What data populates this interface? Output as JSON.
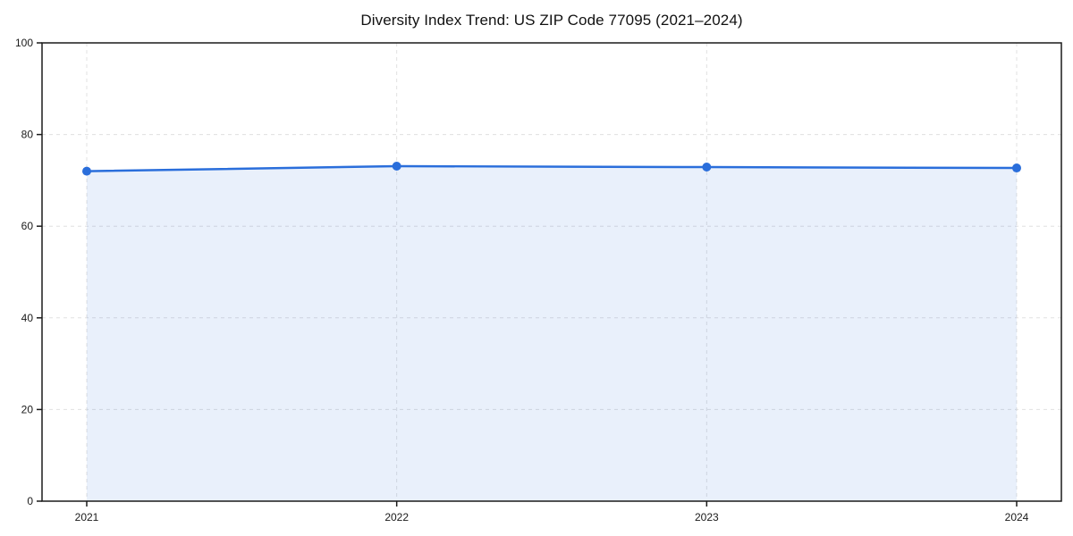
{
  "page": {
    "background": "#ffffff"
  },
  "chart_data": {
    "type": "area",
    "title": "Diversity Index Trend: US ZIP Code 77095 (2021–2024)",
    "x": [
      "2021",
      "2022",
      "2023",
      "2024"
    ],
    "series": [
      {
        "name": "Diversity Index",
        "values": [
          72.0,
          73.1,
          72.9,
          72.7
        ]
      }
    ],
    "xlabel": "",
    "ylabel": "",
    "ylim": [
      0,
      100
    ],
    "yticks": [
      0,
      20,
      40,
      60,
      80,
      100
    ],
    "grid": "dashed-both-axes",
    "legend": "none",
    "marker": "circle"
  },
  "colors": {
    "line": "#2a6edb",
    "marker": "#2a6edb",
    "fill": "rgba(42, 110, 219, 0.10)",
    "grid": "#e0e0e0",
    "axis": "#1a1a1a",
    "tick_text": "#1a1a1a",
    "title_text": "#111111"
  }
}
